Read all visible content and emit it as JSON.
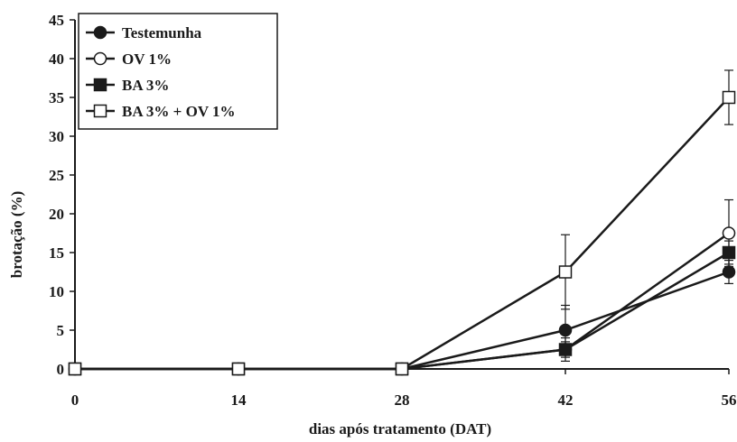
{
  "chart_data": {
    "type": "line",
    "xlabel": "dias após tratamento (DAT)",
    "ylabel": "brotação (%)",
    "x": [
      0,
      14,
      28,
      42,
      56
    ],
    "x_ticks": [
      "0",
      "14",
      "28",
      "42",
      "56"
    ],
    "y_ticks": [
      "0",
      "5",
      "10",
      "15",
      "20",
      "25",
      "30",
      "35",
      "40",
      "45"
    ],
    "xlim": [
      0,
      56
    ],
    "ylim": [
      0,
      45
    ],
    "grid": false,
    "legend_position": "top-left",
    "series": [
      {
        "name": "Testemunha",
        "marker": "filled-circle",
        "values": [
          0,
          0,
          0,
          5,
          12.5
        ],
        "errors": [
          0,
          0,
          0,
          3.2,
          1.5
        ]
      },
      {
        "name": "OV 1%",
        "marker": "open-circle",
        "values": [
          0,
          0,
          0,
          2.5,
          17.5
        ],
        "errors": [
          0,
          0,
          0,
          1.5,
          4.3
        ]
      },
      {
        "name": "BA 3%",
        "marker": "filled-square",
        "values": [
          0,
          0,
          0,
          2.5,
          15
        ],
        "errors": [
          0,
          0,
          0,
          1.0,
          1.5
        ]
      },
      {
        "name": "BA 3% + OV 1%",
        "marker": "open-square",
        "values": [
          0,
          0,
          0,
          12.5,
          35
        ],
        "errors": [
          0,
          0,
          0,
          4.8,
          3.5
        ]
      }
    ],
    "colors": {
      "line": "#1a1a1a",
      "background": "#ffffff"
    }
  }
}
